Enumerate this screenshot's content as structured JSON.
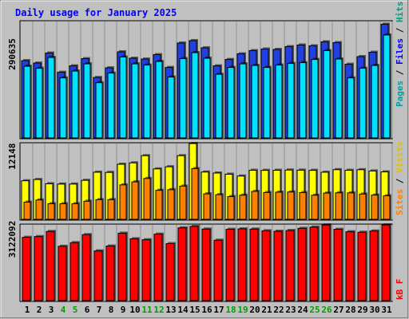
{
  "chart_data": {
    "type": "bar",
    "title": "Daily usage for January 2025",
    "categories": [
      "1",
      "2",
      "3",
      "4",
      "5",
      "6",
      "7",
      "8",
      "9",
      "10",
      "11",
      "12",
      "13",
      "14",
      "15",
      "16",
      "17",
      "18",
      "19",
      "20",
      "21",
      "22",
      "23",
      "24",
      "25",
      "26",
      "27",
      "28",
      "29",
      "30",
      "31"
    ],
    "weekend_days": [
      "4",
      "5",
      "11",
      "12",
      "18",
      "19",
      "25",
      "26"
    ],
    "panels": [
      {
        "name": "traffic",
        "max_label": "290635",
        "ylim": [
          0,
          290635
        ],
        "grid": true,
        "series": [
          {
            "name": "Hits",
            "color": "#2040e0",
            "values": [
              193000,
              187000,
              212000,
              164000,
              180000,
              198000,
              151000,
              175000,
              215000,
              199000,
              197000,
              208000,
              176000,
              237000,
              243000,
              225000,
              180000,
              196000,
              210000,
              218000,
              222000,
              221000,
              228000,
              232000,
              230000,
              240000,
              238000,
              184000,
              203000,
              214000,
              284000
            ]
          },
          {
            "name": "Files",
            "color": "#00e0ff",
            "values": [
              179000,
              174000,
              201000,
              150000,
              167000,
              185000,
              138000,
              162000,
              202000,
              185000,
              182000,
              191000,
              152000,
              198000,
              213000,
              199000,
              159000,
              176000,
              185000,
              181000,
              176000,
              182000,
              186000,
              188000,
              196000,
              218000,
              197000,
              150000,
              174000,
              181000,
              257000
            ]
          },
          {
            "name": "Pages",
            "color": "#00a0a0",
            "values": []
          }
        ]
      },
      {
        "name": "visits",
        "max_label": "12148",
        "ylim": [
          0,
          12148
        ],
        "grid": true,
        "series": [
          {
            "name": "Visits",
            "color": "#ffff00",
            "values": [
              6180,
              6380,
              5700,
              5650,
              5650,
              6250,
              7550,
              7520,
              8830,
              9050,
              10200,
              8080,
              8420,
              10200,
              12148,
              7580,
              7420,
              7230,
              6940,
              7860,
              7850,
              7860,
              7900,
              7880,
              7850,
              7550,
              7960,
              7860,
              7950,
              7750,
              7600
            ]
          },
          {
            "name": "Sites",
            "color": "#ff8000",
            "values": [
              2750,
              3100,
              2500,
              2500,
              2500,
              2900,
              3150,
              3150,
              5520,
              6000,
              6550,
              4650,
              4750,
              5320,
              8130,
              4080,
              3950,
              3650,
              3870,
              4480,
              4300,
              4350,
              4380,
              4280,
              3860,
              4200,
              4250,
              4240,
              4050,
              3880,
              3770
            ]
          }
        ]
      },
      {
        "name": "kbytes",
        "max_label": "3122092",
        "ylim": [
          0,
          3122092
        ],
        "grid": true,
        "series": [
          {
            "name": "kB F",
            "color": "#ff0000",
            "values": [
              2610000,
              2640000,
              2850000,
              2240000,
              2390000,
              2720000,
              2050000,
              2250000,
              2780000,
              2550000,
              2510000,
              2740000,
              2350000,
              3000000,
              3060000,
              2950000,
              2490000,
              2940000,
              2960000,
              2950000,
              2880000,
              2860000,
              2890000,
              2980000,
              3030000,
              3120000,
              2940000,
              2840000,
              2820000,
              2870000,
              3122092
            ]
          }
        ]
      }
    ],
    "legend_labels": {
      "pages": "Pages",
      "files": "Files",
      "hits": "Hits",
      "sites": "Sites",
      "visits": "Visits",
      "kbf": "kB F",
      "sep": "/"
    }
  },
  "colors": {
    "background": "#c0c0c0",
    "plot_bg": "#c0c0c0",
    "grid": "#909090",
    "title": "#0000ff",
    "weekday_label": "#000000",
    "weekend_label": "#00a000"
  }
}
